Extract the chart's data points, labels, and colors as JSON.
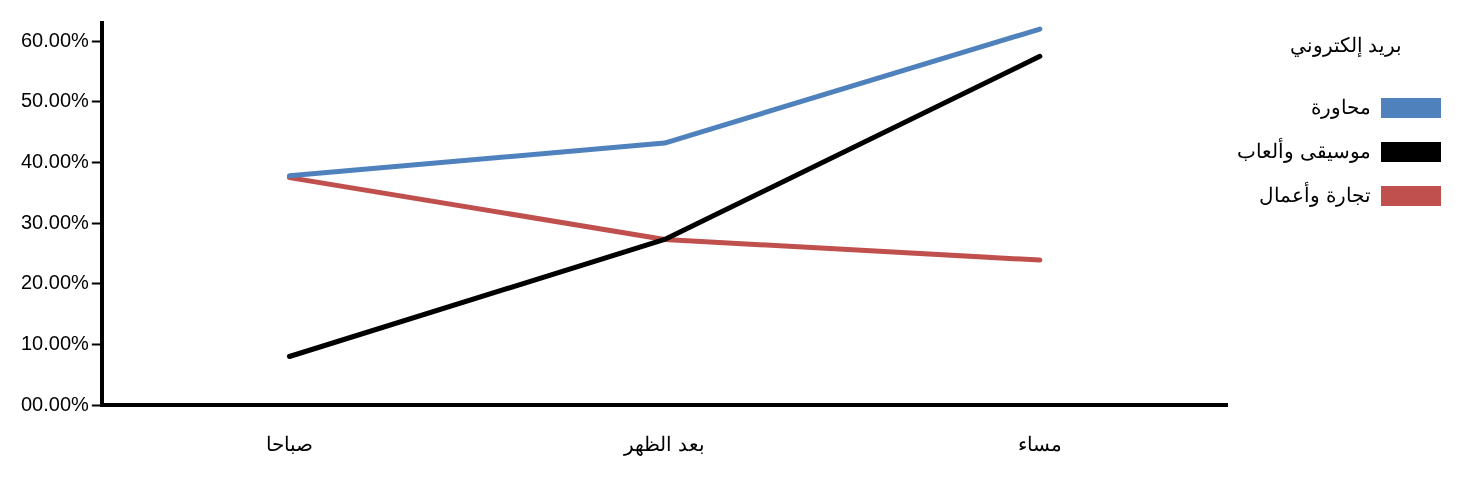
{
  "chart_data": {
    "type": "line",
    "categories": [
      "صباحا",
      "بعد الظهر",
      "مساء"
    ],
    "series": [
      {
        "name": "محاورة",
        "color": "#4f81bd",
        "values": [
          37.8,
          43.2,
          62
        ]
      },
      {
        "name": "موسيقى وألعاب",
        "color": "#000000",
        "values": [
          8,
          27.3,
          57.5
        ]
      },
      {
        "name": "تجارة وأعمال",
        "color": "#c0504d",
        "values": [
          37.5,
          27.3,
          23.9
        ]
      }
    ],
    "legend_title": "بريد إلكتروني",
    "legend": "right",
    "grid": false,
    "marker": "none",
    "line_style": "solid",
    "ylim": [
      0,
      63
    ],
    "yticks": [
      {
        "value": 0,
        "label": "00.00%"
      },
      {
        "value": 10,
        "label": "10.00%"
      },
      {
        "value": 20,
        "label": "20.00%"
      },
      {
        "value": 30,
        "label": "30.00%"
      },
      {
        "value": 40,
        "label": "40.00%"
      },
      {
        "value": 50,
        "label": "50.00%"
      },
      {
        "value": 60,
        "label": "60.00%"
      }
    ]
  }
}
